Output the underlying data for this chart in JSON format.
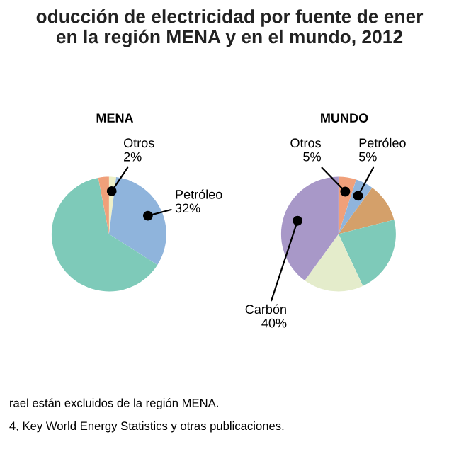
{
  "chart_data": [
    {
      "type": "pie",
      "title": "oducción de electricidad por fuente de ener\nen la región MENA y en el mundo, 2012",
      "subtitle": "MENA",
      "categories": [
        "Otros",
        "Petróleo",
        null,
        null
      ],
      "values": [
        2,
        32,
        63,
        3
      ],
      "value_labels": [
        "2%",
        "32%",
        null,
        null
      ],
      "colors": [
        "#eef0c8",
        "#8fb4dc",
        "#7ecab9",
        "#f0a07a"
      ],
      "annotations": [
        "rael están excluidos de la región MENA.",
        "4, Key World Energy Statistics y otras publicaciones."
      ]
    },
    {
      "type": "pie",
      "subtitle": "MUNDO",
      "categories": [
        "Otros",
        "Petróleo",
        null,
        null,
        null,
        "Carbón"
      ],
      "values": [
        5,
        5,
        11,
        22,
        17,
        40
      ],
      "value_labels": [
        "5%",
        "5%",
        null,
        null,
        null,
        "40%"
      ],
      "colors": [
        "#f0a07a",
        "#8fb4dc",
        "#d4a06a",
        "#7ecab9",
        "#e4eccb",
        "#a898c8"
      ]
    }
  ]
}
